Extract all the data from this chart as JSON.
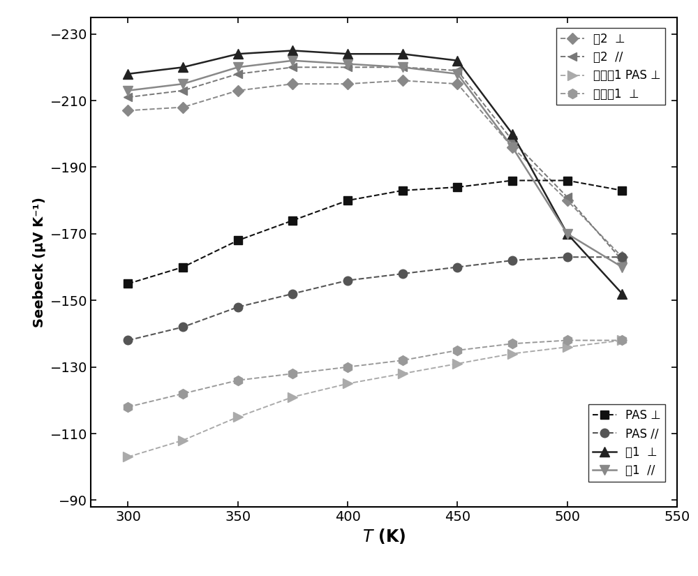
{
  "xlabel": "$\\mathit{T}$ (K)",
  "ylabel": "Seebeck (μV K⁻¹)",
  "xlim": [
    283,
    543
  ],
  "ylim": [
    -235,
    -88
  ],
  "xticks": [
    300,
    350,
    400,
    450,
    500,
    550
  ],
  "yticks": [
    -90,
    -110,
    -130,
    -150,
    -170,
    -190,
    -210,
    -230
  ],
  "series": [
    {
      "label": "例2  ⊥",
      "marker": "D",
      "color": "#888888",
      "linestyle": "--",
      "linewidth": 1.4,
      "markersize": 8,
      "x": [
        300,
        325,
        350,
        375,
        400,
        425,
        450,
        475,
        500,
        525
      ],
      "y": [
        -207,
        -208,
        -213,
        -215,
        -215,
        -216,
        -215,
        -196,
        -180,
        -163
      ]
    },
    {
      "label": "例2  //",
      "marker": "<",
      "color": "#777777",
      "linestyle": "--",
      "linewidth": 1.4,
      "markersize": 9,
      "x": [
        300,
        325,
        350,
        375,
        400,
        425,
        450,
        475,
        500,
        525
      ],
      "y": [
        -211,
        -213,
        -218,
        -220,
        -220,
        -220,
        -219,
        -198,
        -181,
        -162
      ]
    },
    {
      "label": "对比例1 PAS ⊥",
      "marker": ">",
      "color": "#aaaaaa",
      "linestyle": "--",
      "linewidth": 1.4,
      "markersize": 10,
      "x": [
        300,
        325,
        350,
        375,
        400,
        425,
        450,
        475,
        500,
        525
      ],
      "y": [
        -103,
        -108,
        -115,
        -121,
        -125,
        -128,
        -131,
        -134,
        -136,
        -138
      ]
    },
    {
      "label": "对比例1  ⊥",
      "marker": "h",
      "color": "#999999",
      "linestyle": "--",
      "linewidth": 1.4,
      "markersize": 10,
      "x": [
        300,
        325,
        350,
        375,
        400,
        425,
        450,
        475,
        500,
        525
      ],
      "y": [
        -118,
        -122,
        -126,
        -128,
        -130,
        -132,
        -135,
        -137,
        -138,
        -138
      ]
    },
    {
      "label": "PAS ⊥",
      "marker": "s",
      "color": "#111111",
      "linestyle": "--",
      "linewidth": 1.5,
      "markersize": 9,
      "x": [
        300,
        325,
        350,
        375,
        400,
        425,
        450,
        475,
        500,
        525
      ],
      "y": [
        -155,
        -160,
        -168,
        -174,
        -180,
        -183,
        -184,
        -186,
        -186,
        -183
      ]
    },
    {
      "label": "PAS //",
      "marker": "o",
      "color": "#555555",
      "linestyle": "--",
      "linewidth": 1.5,
      "markersize": 9,
      "x": [
        300,
        325,
        350,
        375,
        400,
        425,
        450,
        475,
        500,
        525
      ],
      "y": [
        -138,
        -142,
        -148,
        -152,
        -156,
        -158,
        -160,
        -162,
        -163,
        -163
      ]
    },
    {
      "label": "例1  ⊥",
      "marker": "^",
      "color": "#222222",
      "linestyle": "-",
      "linewidth": 1.8,
      "markersize": 10,
      "x": [
        300,
        325,
        350,
        375,
        400,
        425,
        450,
        475,
        500,
        525
      ],
      "y": [
        -218,
        -220,
        -224,
        -225,
        -224,
        -224,
        -222,
        -200,
        -170,
        -152
      ]
    },
    {
      "label": "例1  //",
      "marker": "v",
      "color": "#888888",
      "linestyle": "-",
      "linewidth": 1.8,
      "markersize": 10,
      "x": [
        300,
        325,
        350,
        375,
        400,
        425,
        450,
        475,
        500,
        525
      ],
      "y": [
        -213,
        -215,
        -220,
        -222,
        -221,
        -220,
        -218,
        -196,
        -170,
        -160
      ]
    }
  ],
  "legend1_indices": [
    0,
    1,
    2,
    3
  ],
  "legend2_indices": [
    4,
    5,
    6,
    7
  ]
}
